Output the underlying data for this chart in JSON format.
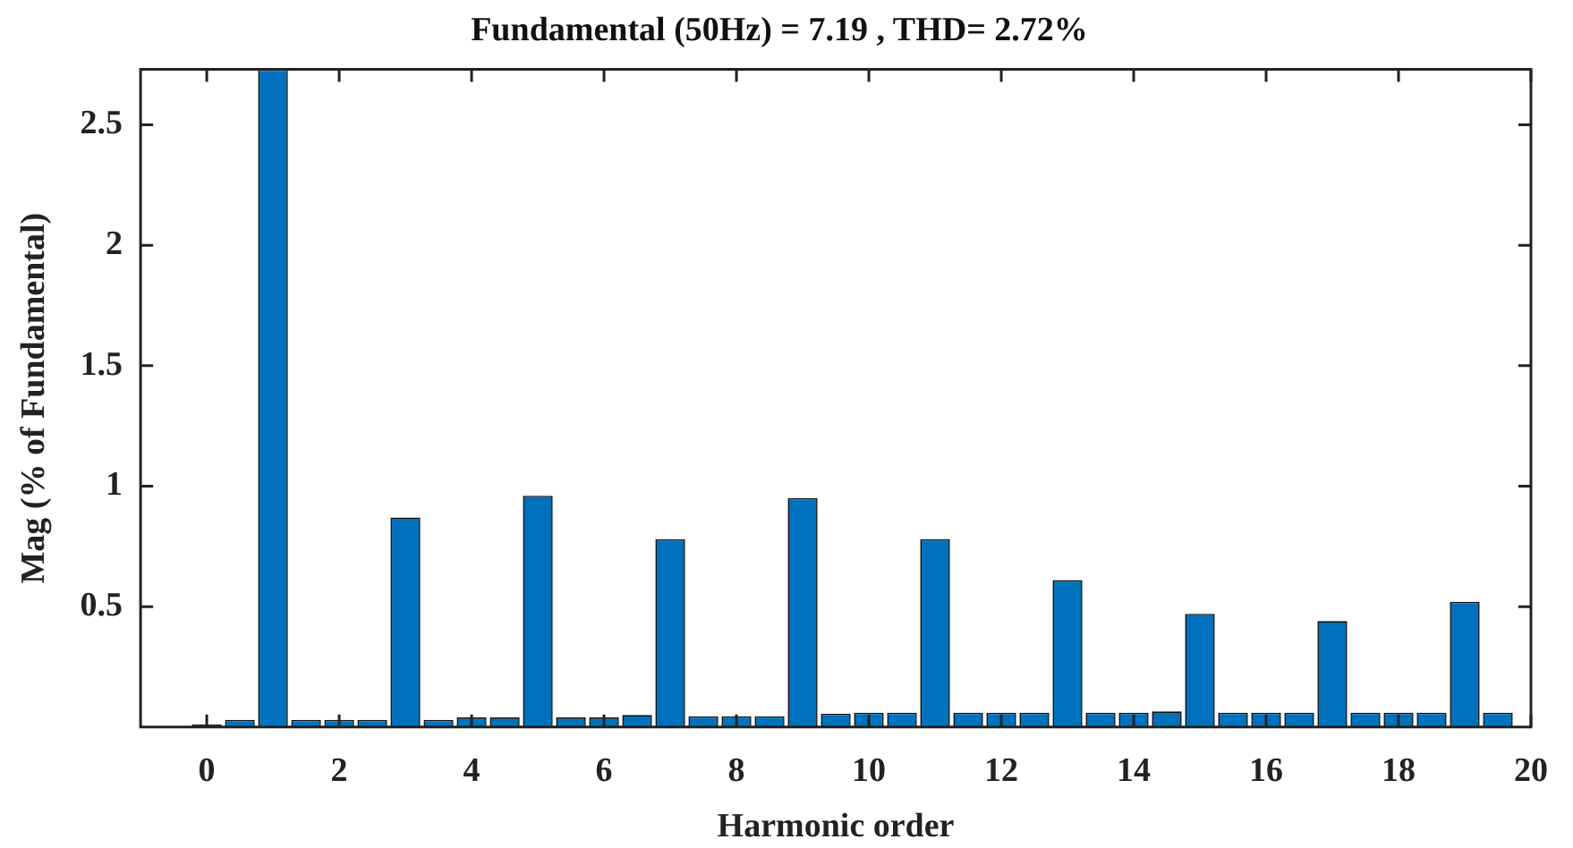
{
  "chart_data": {
    "type": "bar",
    "title": "Fundamental (50Hz) = 7.19 , THD= 2.72%",
    "xlabel": "Harmonic order",
    "ylabel": "Mag (% of Fundamental)",
    "x": [
      0,
      0.5,
      1,
      1.5,
      2,
      2.5,
      3,
      3.5,
      4,
      4.5,
      5,
      5.5,
      6,
      6.5,
      7,
      7.5,
      8,
      8.5,
      9,
      9.5,
      10,
      10.5,
      11,
      11.5,
      12,
      12.5,
      13,
      13.5,
      14,
      14.5,
      15,
      15.5,
      16,
      16.5,
      17,
      17.5,
      18,
      18.5,
      19,
      19.5
    ],
    "values": [
      0.01,
      0.03,
      2.73,
      0.03,
      0.03,
      0.03,
      0.87,
      0.03,
      0.04,
      0.04,
      0.96,
      0.04,
      0.04,
      0.05,
      0.78,
      0.045,
      0.045,
      0.045,
      0.95,
      0.055,
      0.06,
      0.06,
      0.78,
      0.06,
      0.06,
      0.06,
      0.61,
      0.06,
      0.06,
      0.065,
      0.47,
      0.06,
      0.06,
      0.06,
      0.44,
      0.06,
      0.06,
      0.06,
      0.52,
      0.06
    ],
    "color": "#0072bd",
    "xlim": [
      -1,
      20
    ],
    "xticks": [
      0,
      2,
      4,
      6,
      8,
      10,
      12,
      14,
      16,
      18,
      20
    ],
    "ylim": [
      0,
      2.73
    ],
    "yticks": [
      0.5,
      1,
      1.5,
      2,
      2.5
    ]
  }
}
